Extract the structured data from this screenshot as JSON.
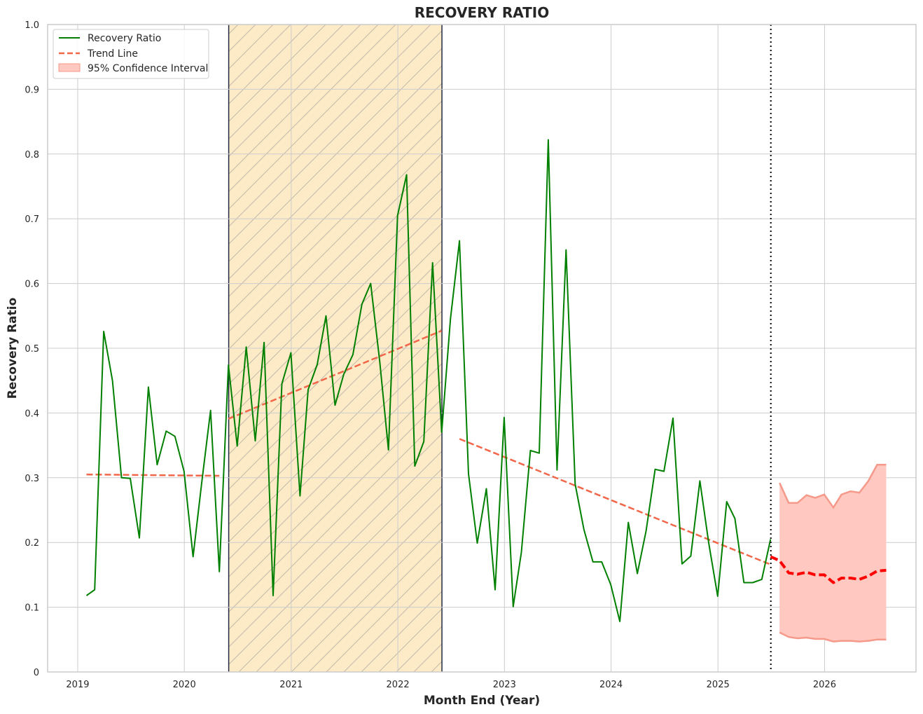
{
  "chart_data": {
    "type": "line",
    "title": "RECOVERY RATIO",
    "xlabel": "Month End (Year)",
    "ylabel": "Recovery Ratio",
    "xlim": [
      "2018-09-20",
      "2026-11-10"
    ],
    "ylim": [
      0,
      1.0
    ],
    "x_ticks": [
      "2019",
      "2020",
      "2021",
      "2022",
      "2023",
      "2024",
      "2025",
      "2026"
    ],
    "y_ticks": [
      "0",
      "0.1",
      "0.2",
      "0.3",
      "0.4",
      "0.5",
      "0.6",
      "0.7",
      "0.8",
      "0.9",
      "1.0"
    ],
    "grid": true,
    "legend_position": "top-left",
    "legend": {
      "recovery": "Recovery Ratio",
      "trend": "Trend Line",
      "ci": "95% Confidence Interval"
    },
    "shaded_period": {
      "start": "2020-06-01",
      "end": "2022-06-01",
      "fill": "#fdebc8",
      "hatch": "diagonal"
    },
    "forecast_start": "2025-07-01",
    "colors": {
      "recovery": "#008000",
      "trend": "#f26649",
      "forecast": "#ff0000",
      "ci_fill": "#ffc8c0",
      "ci_edge": "#f59a8a",
      "grid": "#cccccc",
      "shade_edge": "#1f2a44"
    },
    "series": [
      {
        "name": "Recovery Ratio",
        "x": [
          "2019-01",
          "2019-02",
          "2019-03",
          "2019-04",
          "2019-05",
          "2019-06",
          "2019-07",
          "2019-08",
          "2019-09",
          "2019-10",
          "2019-11",
          "2019-12",
          "2020-01",
          "2020-02",
          "2020-03",
          "2020-04",
          "2020-05",
          "2020-06",
          "2020-07",
          "2020-08",
          "2020-09",
          "2020-10",
          "2020-11",
          "2020-12",
          "2021-01",
          "2021-02",
          "2021-03",
          "2021-04",
          "2021-05",
          "2021-06",
          "2021-07",
          "2021-08",
          "2021-09",
          "2021-10",
          "2021-11",
          "2021-12",
          "2022-01",
          "2022-02",
          "2022-03",
          "2022-04",
          "2022-05",
          "2022-06",
          "2022-07",
          "2022-08",
          "2022-09",
          "2022-10",
          "2022-11",
          "2022-12",
          "2023-01",
          "2023-02",
          "2023-03",
          "2023-04",
          "2023-05",
          "2023-06",
          "2023-07",
          "2023-08",
          "2023-09",
          "2023-10",
          "2023-11",
          "2023-12",
          "2024-01",
          "2024-02",
          "2024-03",
          "2024-04",
          "2024-05",
          "2024-06",
          "2024-07",
          "2024-08",
          "2024-09",
          "2024-10",
          "2024-11",
          "2024-12",
          "2025-01",
          "2025-02",
          "2025-03",
          "2025-04",
          "2025-05",
          "2025-06"
        ],
        "values": [
          0.118,
          0.127,
          0.526,
          0.45,
          0.3,
          0.299,
          0.207,
          0.44,
          0.32,
          0.372,
          0.364,
          0.31,
          0.178,
          0.29,
          0.404,
          0.155,
          0.474,
          0.349,
          0.502,
          0.357,
          0.509,
          0.118,
          0.445,
          0.493,
          0.272,
          0.436,
          0.475,
          0.55,
          0.412,
          0.46,
          0.49,
          0.568,
          0.6,
          0.48,
          0.343,
          0.705,
          0.768,
          0.318,
          0.356,
          0.632,
          0.37,
          0.545,
          0.666,
          0.306,
          0.199,
          0.283,
          0.127,
          0.393,
          0.101,
          0.185,
          0.342,
          0.338,
          0.822,
          0.312,
          0.652,
          0.29,
          0.22,
          0.17,
          0.17,
          0.135,
          0.078,
          0.231,
          0.152,
          0.218,
          0.313,
          0.31,
          0.392,
          0.167,
          0.179,
          0.295,
          0.2,
          0.117,
          0.263,
          0.237,
          0.138,
          0.138,
          0.143,
          0.205
        ]
      },
      {
        "name": "Trend Line",
        "segments": [
          {
            "x": [
              "2019-01-31",
              "2020-04-30"
            ],
            "values": [
              0.305,
              0.303
            ]
          },
          {
            "x": [
              "2020-05-31",
              "2022-05-31"
            ],
            "values": [
              0.391,
              0.527
            ]
          },
          {
            "x": [
              "2022-07-31",
              "2025-06-30"
            ],
            "values": [
              0.36,
              0.166
            ]
          }
        ]
      },
      {
        "name": "Forecast",
        "x": [
          "2025-06",
          "2025-07",
          "2025-08",
          "2025-09",
          "2025-10",
          "2025-11",
          "2025-12",
          "2026-01",
          "2026-02",
          "2026-03",
          "2026-04",
          "2026-05",
          "2026-06",
          "2026-07"
        ],
        "values": [
          0.178,
          0.172,
          0.153,
          0.151,
          0.154,
          0.15,
          0.15,
          0.138,
          0.145,
          0.145,
          0.143,
          0.148,
          0.156,
          0.157
        ]
      },
      {
        "name": "95% Confidence Interval",
        "x": [
          "2025-07",
          "2025-08",
          "2025-09",
          "2025-10",
          "2025-11",
          "2025-12",
          "2026-01",
          "2026-02",
          "2026-03",
          "2026-04",
          "2026-05",
          "2026-06",
          "2026-07"
        ],
        "upper": [
          0.292,
          0.261,
          0.261,
          0.273,
          0.269,
          0.274,
          0.254,
          0.274,
          0.279,
          0.277,
          0.295,
          0.32,
          0.32
        ],
        "lower": [
          0.061,
          0.054,
          0.052,
          0.053,
          0.051,
          0.051,
          0.047,
          0.048,
          0.048,
          0.047,
          0.048,
          0.05,
          0.05
        ]
      }
    ]
  }
}
